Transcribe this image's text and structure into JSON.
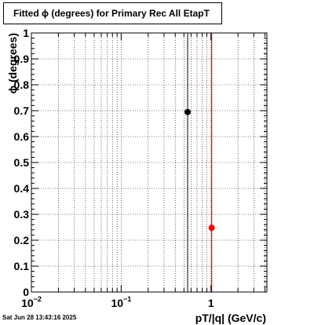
{
  "title": "Fitted ϕ (degrees) for Primary Rec All EtapT",
  "timestamp": "Sat Jun 28 13:43:16 2025",
  "chart_data": {
    "type": "scatter",
    "title": "Fitted ϕ (degrees) for Primary Rec All EtapT",
    "xlabel": "pT/|q| (GeV/c)",
    "ylabel": "ϕ (degrees)",
    "xscale": "log",
    "xlim": [
      0.01,
      4.2
    ],
    "ylim": [
      0,
      1
    ],
    "grid": true,
    "x_ticks": [
      {
        "value": 0.01,
        "base": "10",
        "exp": "−2"
      },
      {
        "value": 0.1,
        "base": "10",
        "exp": "−1"
      },
      {
        "value": 1,
        "base": "1",
        "exp": ""
      }
    ],
    "y_ticks": [
      "0",
      "0.1",
      "0.2",
      "0.3",
      "0.4",
      "0.5",
      "0.6",
      "0.7",
      "0.8",
      "0.9",
      "1"
    ],
    "points": [
      {
        "x": 0.55,
        "y": 0.695,
        "color": "#000000"
      },
      {
        "x": 1.02,
        "y": 0.248,
        "color": "#ff0000"
      }
    ],
    "vlines": [
      {
        "x": 0.55,
        "color": "#000000"
      },
      {
        "x": 1.02,
        "color": "#a00000"
      }
    ]
  }
}
